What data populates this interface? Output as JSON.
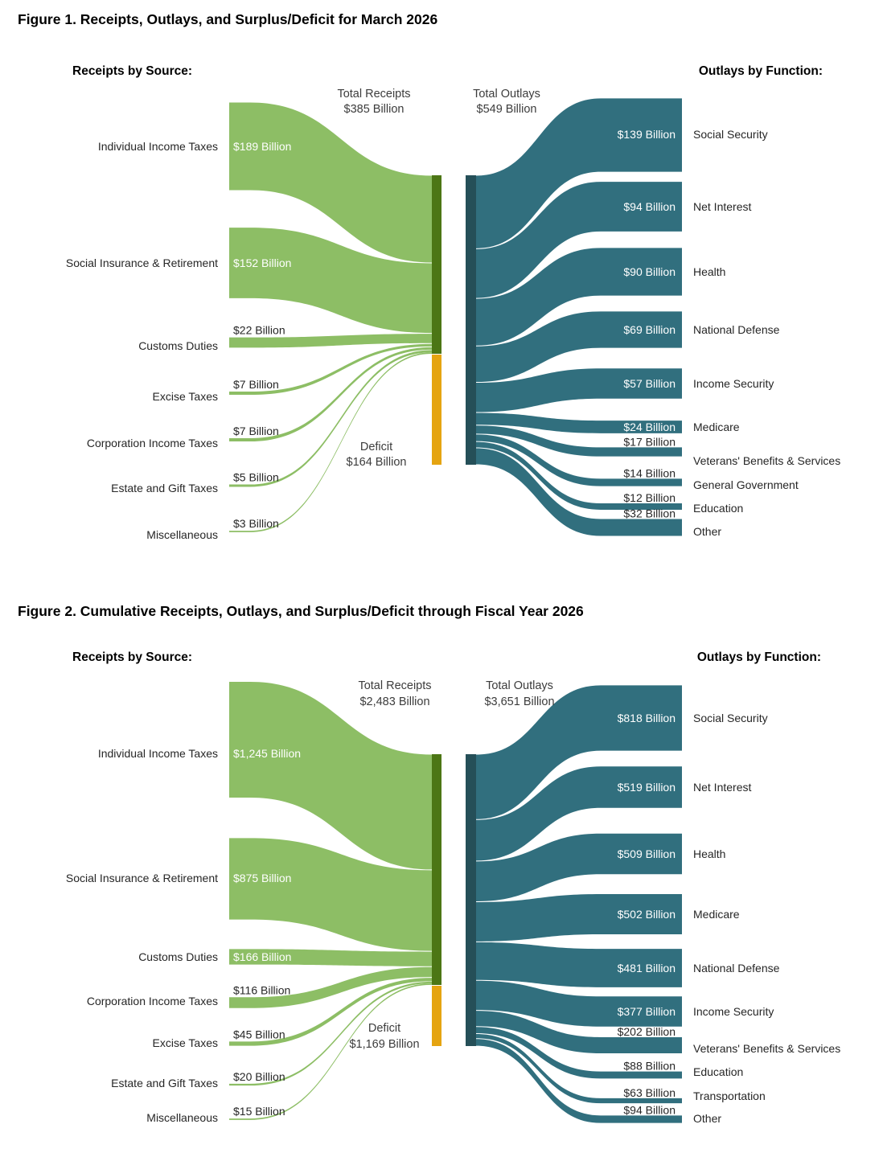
{
  "colors": {
    "background": "#ffffff",
    "receipt_flow_green": "#8dbe65",
    "receipt_bar_green": "#4c7615",
    "deficit_gold": "#e5a411",
    "outlay_flow_teal": "#316f7e",
    "outlay_bar_teal": "#254f58",
    "text_dark": "#262626",
    "text_gray": "#3c3c3c",
    "value_text_light": "#ffffff"
  },
  "chart_data": [
    {
      "type": "sankey",
      "title": "Figure 1. Receipts, Outlays, and Surplus/Deficit for March 2026",
      "left_header": "Receipts by Source:",
      "right_header": "Outlays by Function:",
      "value_unit": "Billion USD",
      "total_receipts": {
        "label": "Total Receipts",
        "text": "$385 Billion",
        "value": 385
      },
      "total_outlays": {
        "label": "Total Outlays",
        "text": "$549 Billion",
        "value": 549
      },
      "deficit": {
        "label": "Deficit",
        "text": "$164 Billion",
        "value": 164
      },
      "receipts": [
        {
          "name": "Individual Income Taxes",
          "value": 189,
          "text": "$189 Billion"
        },
        {
          "name": "Social Insurance & Retirement",
          "value": 152,
          "text": "$152 Billion"
        },
        {
          "name": "Customs Duties",
          "value": 22,
          "text": "$22 Billion"
        },
        {
          "name": "Excise Taxes",
          "value": 7,
          "text": "$7 Billion"
        },
        {
          "name": "Corporation Income Taxes",
          "value": 7,
          "text": "$7 Billion"
        },
        {
          "name": "Estate and Gift Taxes",
          "value": 5,
          "text": "$5 Billion"
        },
        {
          "name": "Miscellaneous",
          "value": 3,
          "text": "$3 Billion"
        }
      ],
      "outlays": [
        {
          "name": "Social Security",
          "value": 139,
          "text": "$139 Billion"
        },
        {
          "name": "Net Interest",
          "value": 94,
          "text": "$94 Billion"
        },
        {
          "name": "Health",
          "value": 90,
          "text": "$90 Billion"
        },
        {
          "name": "National Defense",
          "value": 69,
          "text": "$69 Billion"
        },
        {
          "name": "Income Security",
          "value": 57,
          "text": "$57 Billion"
        },
        {
          "name": "Medicare",
          "value": 24,
          "text": "$24 Billion"
        },
        {
          "name": "Veterans' Benefits & Services",
          "value": 17,
          "text": "$17 Billion"
        },
        {
          "name": "General Government",
          "value": 14,
          "text": "$14 Billion"
        },
        {
          "name": "Education",
          "value": 12,
          "text": "$12 Billion"
        },
        {
          "name": "Other",
          "value": 32,
          "text": "$32 Billion"
        }
      ]
    },
    {
      "type": "sankey",
      "title": "Figure 2. Cumulative Receipts, Outlays, and Surplus/Deficit through Fiscal Year 2026",
      "left_header": "Receipts by Source:",
      "right_header": "Outlays by Function:",
      "value_unit": "Billion USD",
      "total_receipts": {
        "label": "Total Receipts",
        "text": "$2,483 Billion",
        "value": 2483
      },
      "total_outlays": {
        "label": "Total Outlays",
        "text": "$3,651 Billion",
        "value": 3651
      },
      "deficit": {
        "label": "Deficit",
        "text": "$1,169 Billion",
        "value": 1169
      },
      "receipts": [
        {
          "name": "Individual Income Taxes",
          "value": 1245,
          "text": "$1,245 Billion"
        },
        {
          "name": "Social Insurance & Retirement",
          "value": 875,
          "text": "$875 Billion"
        },
        {
          "name": "Customs Duties",
          "value": 166,
          "text": "$166 Billion"
        },
        {
          "name": "Corporation Income Taxes",
          "value": 116,
          "text": "$116 Billion"
        },
        {
          "name": "Excise Taxes",
          "value": 45,
          "text": "$45 Billion"
        },
        {
          "name": "Estate and Gift Taxes",
          "value": 20,
          "text": "$20 Billion"
        },
        {
          "name": "Miscellaneous",
          "value": 15,
          "text": "$15 Billion"
        }
      ],
      "outlays": [
        {
          "name": "Social Security",
          "value": 818,
          "text": "$818 Billion"
        },
        {
          "name": "Net Interest",
          "value": 519,
          "text": "$519 Billion"
        },
        {
          "name": "Health",
          "value": 509,
          "text": "$509 Billion"
        },
        {
          "name": "Medicare",
          "value": 502,
          "text": "$502 Billion"
        },
        {
          "name": "National Defense",
          "value": 481,
          "text": "$481 Billion"
        },
        {
          "name": "Income Security",
          "value": 377,
          "text": "$377 Billion"
        },
        {
          "name": "Veterans' Benefits & Services",
          "value": 202,
          "text": "$202 Billion"
        },
        {
          "name": "Education",
          "value": 88,
          "text": "$88 Billion"
        },
        {
          "name": "Transportation",
          "value": 63,
          "text": "$63 Billion"
        },
        {
          "name": "Other",
          "value": 94,
          "text": "$94 Billion"
        }
      ]
    }
  ]
}
